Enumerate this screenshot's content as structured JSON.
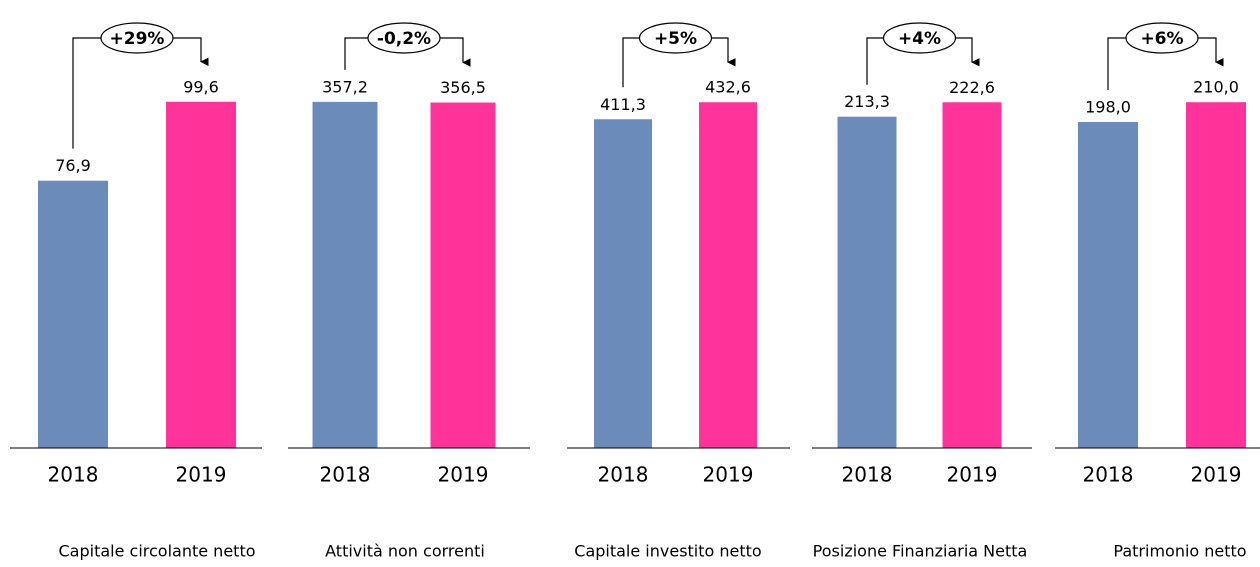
{
  "chart_data": [
    {
      "type": "bar",
      "title": "Capitale circolante netto",
      "annotation": "+29%",
      "categories": [
        "2018",
        "2019"
      ],
      "values": [
        76.9,
        99.6
      ],
      "value_labels": [
        "76,9",
        "99,6"
      ],
      "colors": [
        "#6b8cba",
        "#ff3399"
      ],
      "ylim": [
        0,
        126
      ]
    },
    {
      "type": "bar",
      "title": "Attività non correnti",
      "annotation": "-0,2%",
      "categories": [
        "2018",
        "2019"
      ],
      "values": [
        357.2,
        356.5
      ],
      "value_labels": [
        "357,2",
        "356,5"
      ],
      "colors": [
        "#6b8cba",
        "#ff3399"
      ],
      "ylim": [
        0,
        452
      ]
    },
    {
      "type": "bar",
      "title": "Capitale investito netto",
      "annotation": "+5%",
      "categories": [
        "2018",
        "2019"
      ],
      "values": [
        411.3,
        432.6
      ],
      "value_labels": [
        "411,3",
        "432,6"
      ],
      "colors": [
        "#6b8cba",
        "#ff3399"
      ],
      "ylim": [
        0,
        548
      ]
    },
    {
      "type": "bar",
      "title": "Posizione Finanziaria Netta",
      "annotation": "+4%",
      "categories": [
        "2018",
        "2019"
      ],
      "values": [
        213.3,
        222.6
      ],
      "value_labels": [
        "213,3",
        "222,6"
      ],
      "colors": [
        "#6b8cba",
        "#ff3399"
      ],
      "ylim": [
        0,
        282
      ]
    },
    {
      "type": "bar",
      "title": "Patrimonio netto",
      "annotation": "+6%",
      "categories": [
        "2018",
        "2019"
      ],
      "values": [
        198.0,
        210.0
      ],
      "value_labels": [
        "198,0",
        "210,0"
      ],
      "colors": [
        "#6b8cba",
        "#ff3399"
      ],
      "ylim": [
        0,
        266
      ]
    }
  ]
}
